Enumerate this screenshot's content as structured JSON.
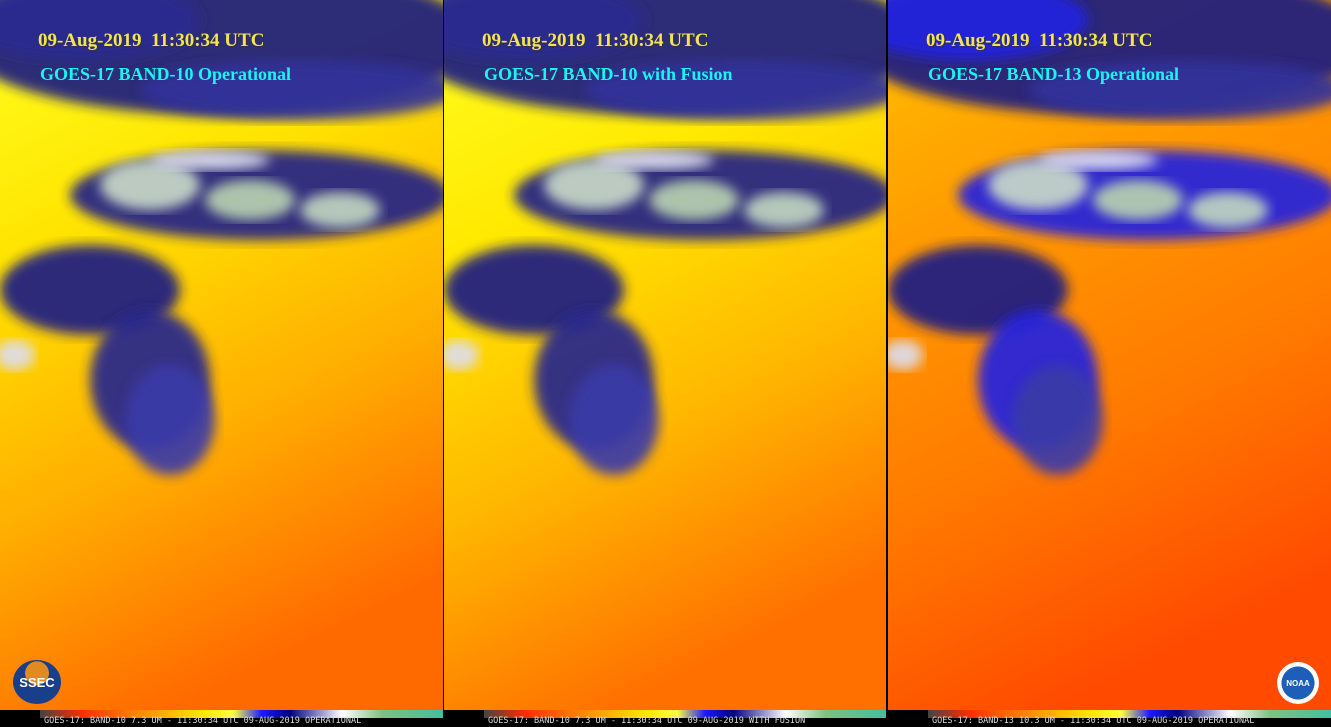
{
  "panels": [
    {
      "timestamp": "09-Aug-2019  11:30:34 UTC",
      "label": "GOES-17 BAND-10 Operational",
      "footer": "GOES-17: BAND-10 7.3 UM - 11:30:34 UTC 09-AUG-2019 OPERATIONAL"
    },
    {
      "timestamp": "09-Aug-2019  11:30:34 UTC",
      "label": "GOES-17 BAND-10 with Fusion",
      "footer": "GOES-17: BAND-10 7.3 UM - 11:30:34 UTC 09-AUG-2019 WITH FUSION"
    },
    {
      "timestamp": "09-Aug-2019  11:30:34 UTC",
      "label": "GOES-17 BAND-13 Operational",
      "footer": "GOES-17: BAND-13 10.3 UM - 11:30:34 UTC 09-AUG-2019 OPERATIONAL"
    }
  ],
  "logos": {
    "left": "SSEC",
    "right": "NOAA"
  }
}
